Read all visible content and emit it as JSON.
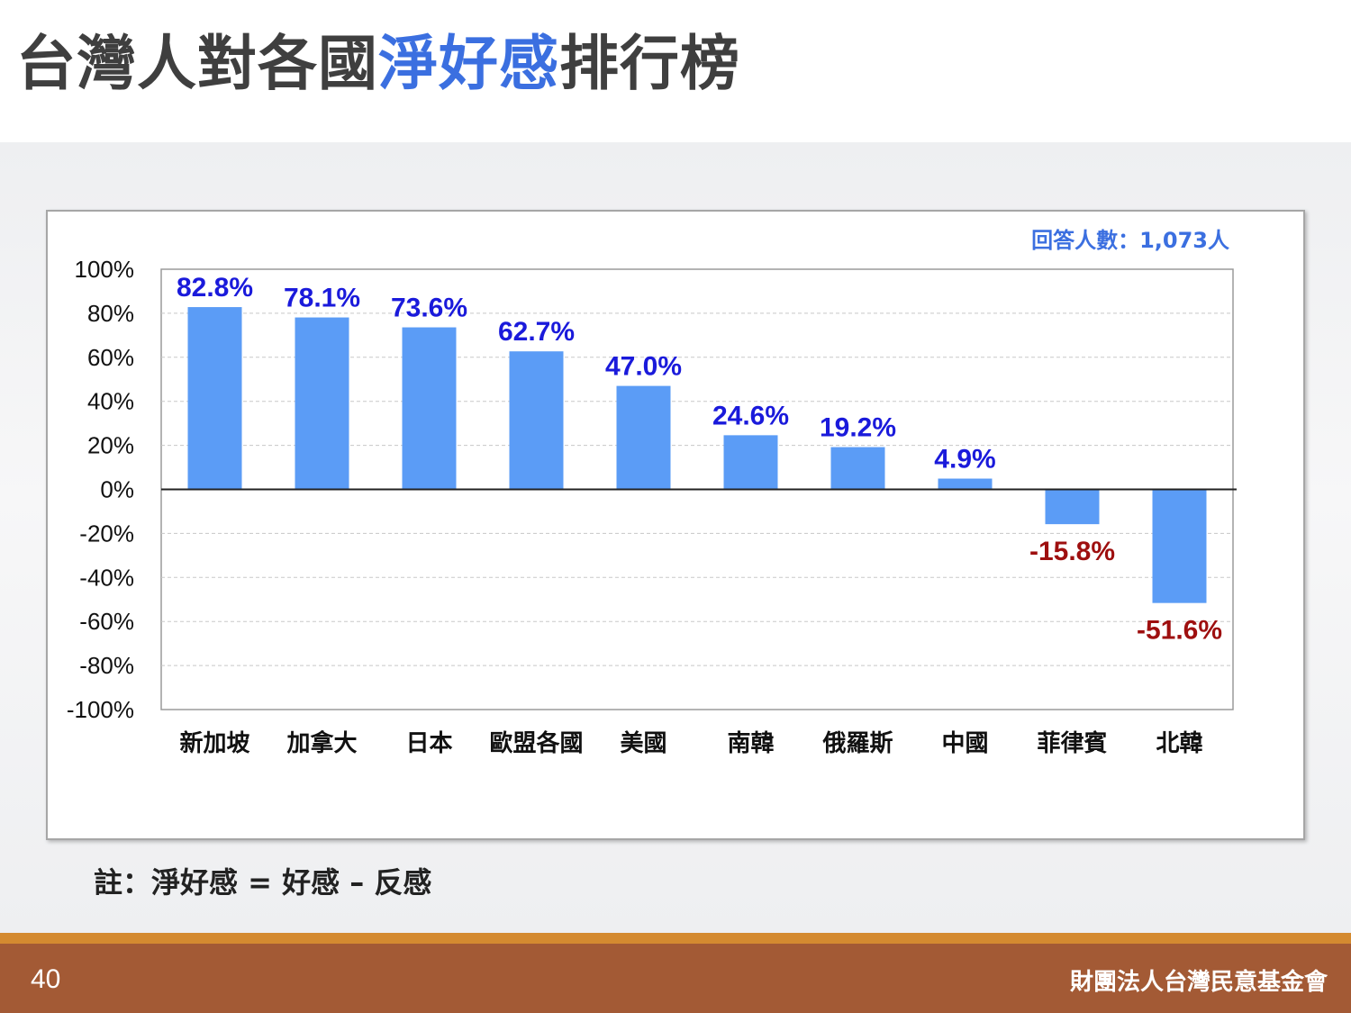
{
  "slide": {
    "title_part1": "台灣人對各國",
    "title_highlight": "淨好感",
    "title_part2": "排行榜",
    "note": "註：淨好感 = 好感 – 反感",
    "page_number": "40",
    "organization": "財團法人台灣民意基金會"
  },
  "colors": {
    "bar": "#5b9cf6",
    "positive_label": "#1a1adb",
    "negative_label": "#9e0f0f",
    "title_highlight": "#3b6fe0",
    "footer": "#a35a35",
    "footer_stripe": "#d48a30"
  },
  "chart_data": {
    "type": "bar",
    "annotation": "回答人數：1,073人",
    "categories": [
      "新加坡",
      "加拿大",
      "日本",
      "歐盟各國",
      "美國",
      "南韓",
      "俄羅斯",
      "中國",
      "菲律賓",
      "北韓"
    ],
    "values": [
      82.8,
      78.1,
      73.6,
      62.7,
      47.0,
      24.6,
      19.2,
      4.9,
      -15.8,
      -51.6
    ],
    "value_labels": [
      "82.8%",
      "78.1%",
      "73.6%",
      "62.7%",
      "47.0%",
      "24.6%",
      "19.2%",
      "4.9%",
      "-15.8%",
      "-51.6%"
    ],
    "y_ticks": [
      "100%",
      "80%",
      "60%",
      "40%",
      "20%",
      "0%",
      "-20%",
      "-40%",
      "-60%",
      "-80%",
      "-100%"
    ],
    "ylim": [
      -100,
      100
    ],
    "grid": true
  }
}
